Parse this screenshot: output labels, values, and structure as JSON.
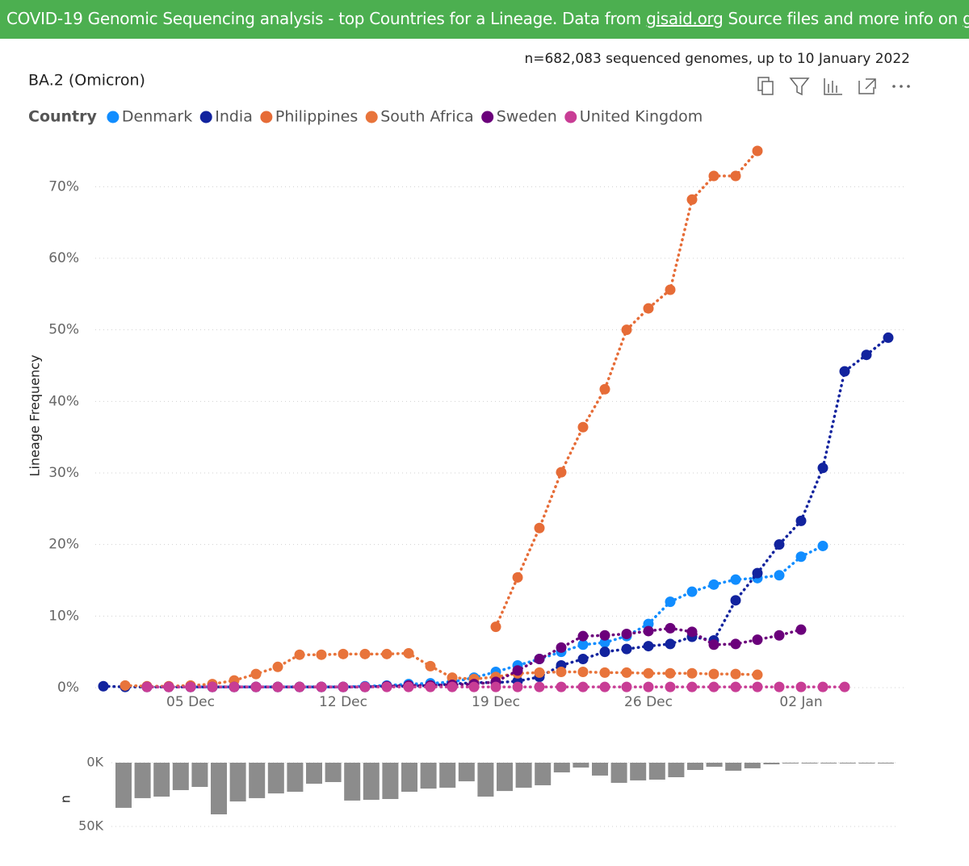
{
  "header": {
    "text1": "COVID-19 Genomic Sequencing analysis - top Countries for a Lineage. Data from",
    "link1": "gisaid.org",
    "text2": "Source files and more info on",
    "link2": "github",
    "text3": "."
  },
  "chart_data": [
    {
      "type": "line",
      "title": "BA.2 (Omicron)",
      "subtitle": "n=682,083 sequenced genomes, up to 10 January 2022",
      "y_label": "Lineage Frequency",
      "legend_title": "Country",
      "line_style": "dotted",
      "grid": true,
      "categories": [
        null,
        null,
        null,
        null,
        "05 Dec",
        null,
        null,
        null,
        null,
        null,
        null,
        "12 Dec",
        null,
        null,
        null,
        null,
        null,
        null,
        "19 Dec",
        null,
        null,
        null,
        null,
        null,
        null,
        "26 Dec",
        null,
        null,
        null,
        null,
        null,
        null,
        "02 Jan",
        null,
        null,
        null,
        null
      ],
      "ylim": [
        0,
        75
      ],
      "yticks": [
        {
          "value": 0,
          "label": "0%"
        },
        {
          "value": 10,
          "label": "10%"
        },
        {
          "value": 20,
          "label": "20%"
        },
        {
          "value": 30,
          "label": "30%"
        },
        {
          "value": 40,
          "label": "40%"
        },
        {
          "value": 50,
          "label": "50%"
        },
        {
          "value": 60,
          "label": "60%"
        },
        {
          "value": 70,
          "label": "70%"
        }
      ],
      "series": [
        {
          "name": "Denmark",
          "color": "#118dff",
          "values": [
            null,
            null,
            null,
            null,
            0.1,
            0.1,
            0.1,
            0.1,
            0.1,
            0.1,
            0.1,
            0.1,
            0.2,
            0.3,
            0.5,
            0.6,
            0.8,
            1.4,
            2.2,
            3.1,
            4.0,
            5.0,
            6.0,
            6.3,
            7.2,
            8.9,
            12.0,
            13.4,
            14.4,
            15.1,
            15.3,
            15.7,
            18.3,
            19.8,
            null,
            null,
            null
          ]
        },
        {
          "name": "India",
          "color": "#12239e",
          "values": [
            0.2,
            0.1,
            0.1,
            0.1,
            0.1,
            0.1,
            0.1,
            0.1,
            0.1,
            0.1,
            0.1,
            0.1,
            0.1,
            0.2,
            0.2,
            0.3,
            0.5,
            0.7,
            0.7,
            0.9,
            1.5,
            3.1,
            4.0,
            5.0,
            5.4,
            5.8,
            6.1,
            7.1,
            6.6,
            12.2,
            16.0,
            20.0,
            23.3,
            30.7,
            44.2,
            46.5,
            48.9
          ]
        },
        {
          "name": "Philippines",
          "color": "#e66c37",
          "values": [
            null,
            null,
            null,
            null,
            null,
            null,
            null,
            null,
            null,
            null,
            null,
            null,
            null,
            null,
            null,
            null,
            null,
            null,
            8.5,
            15.4,
            22.3,
            30.1,
            36.4,
            41.7,
            50.0,
            53.0,
            55.6,
            68.2,
            71.5,
            71.5,
            75,
            null,
            null,
            null,
            null,
            null,
            null
          ]
        },
        {
          "name": "South Africa",
          "color": "#e8743b",
          "values": [
            null,
            0.3,
            0.2,
            0.2,
            0.3,
            0.5,
            1.0,
            1.9,
            2.9,
            4.6,
            4.6,
            4.7,
            4.7,
            4.7,
            4.8,
            3.0,
            1.4,
            1.2,
            1.5,
            2.0,
            2.1,
            2.2,
            2.2,
            2.1,
            2.1,
            2.0,
            2.0,
            2.0,
            1.9,
            1.9,
            1.8,
            null,
            null,
            null,
            null,
            null,
            null
          ]
        },
        {
          "name": "Sweden",
          "color": "#6b007b",
          "values": [
            null,
            null,
            0.1,
            0.1,
            0.1,
            0.1,
            0.1,
            0.1,
            0.1,
            0.1,
            0.1,
            0.1,
            0.1,
            0.2,
            0.3,
            0.3,
            0.4,
            0.5,
            0.8,
            2.4,
            4.0,
            5.6,
            7.2,
            7.3,
            7.5,
            7.9,
            8.3,
            7.8,
            6.0,
            6.1,
            6.7,
            7.3,
            8.1,
            null,
            null,
            null,
            null
          ]
        },
        {
          "name": "United Kingdom",
          "color": "#c83d95",
          "values": [
            null,
            null,
            0.1,
            0.1,
            0.1,
            0.1,
            0.1,
            0.1,
            0.1,
            0.1,
            0.1,
            0.1,
            0.1,
            0.1,
            0.1,
            0.1,
            0.1,
            0.1,
            0.1,
            0.1,
            0.1,
            0.1,
            0.1,
            0.1,
            0.1,
            0.1,
            0.1,
            0.1,
            0.1,
            0.1,
            0.1,
            0.1,
            0.1,
            0.1,
            0.1,
            null,
            null
          ]
        }
      ]
    },
    {
      "type": "bar",
      "y_label": "n",
      "color": "#8c8c8c",
      "inverted": true,
      "grid": true,
      "categories": [
        null,
        null,
        null,
        null,
        null,
        null,
        null,
        null,
        null,
        null,
        null,
        null,
        null,
        null,
        null,
        null,
        null,
        null,
        null,
        null,
        null,
        null,
        null,
        null,
        null,
        null,
        null,
        null,
        null,
        null,
        null,
        null,
        null,
        null,
        null,
        null,
        null,
        null,
        null,
        null,
        null
      ],
      "values": [
        35400,
        27800,
        26600,
        21500,
        19000,
        40500,
        30400,
        27800,
        24100,
        22800,
        16500,
        15200,
        29700,
        29100,
        28500,
        22800,
        20300,
        19600,
        14600,
        26600,
        22200,
        19600,
        17700,
        7600,
        3800,
        10100,
        15800,
        13900,
        13300,
        11400,
        5700,
        3200,
        6300,
        4400,
        1300,
        600,
        600,
        600,
        100,
        600,
        600
      ],
      "ylim": [
        0,
        50000
      ],
      "yticks": [
        {
          "value": 0,
          "label": "0K"
        },
        {
          "value": 50000,
          "label": "50K"
        }
      ]
    }
  ]
}
